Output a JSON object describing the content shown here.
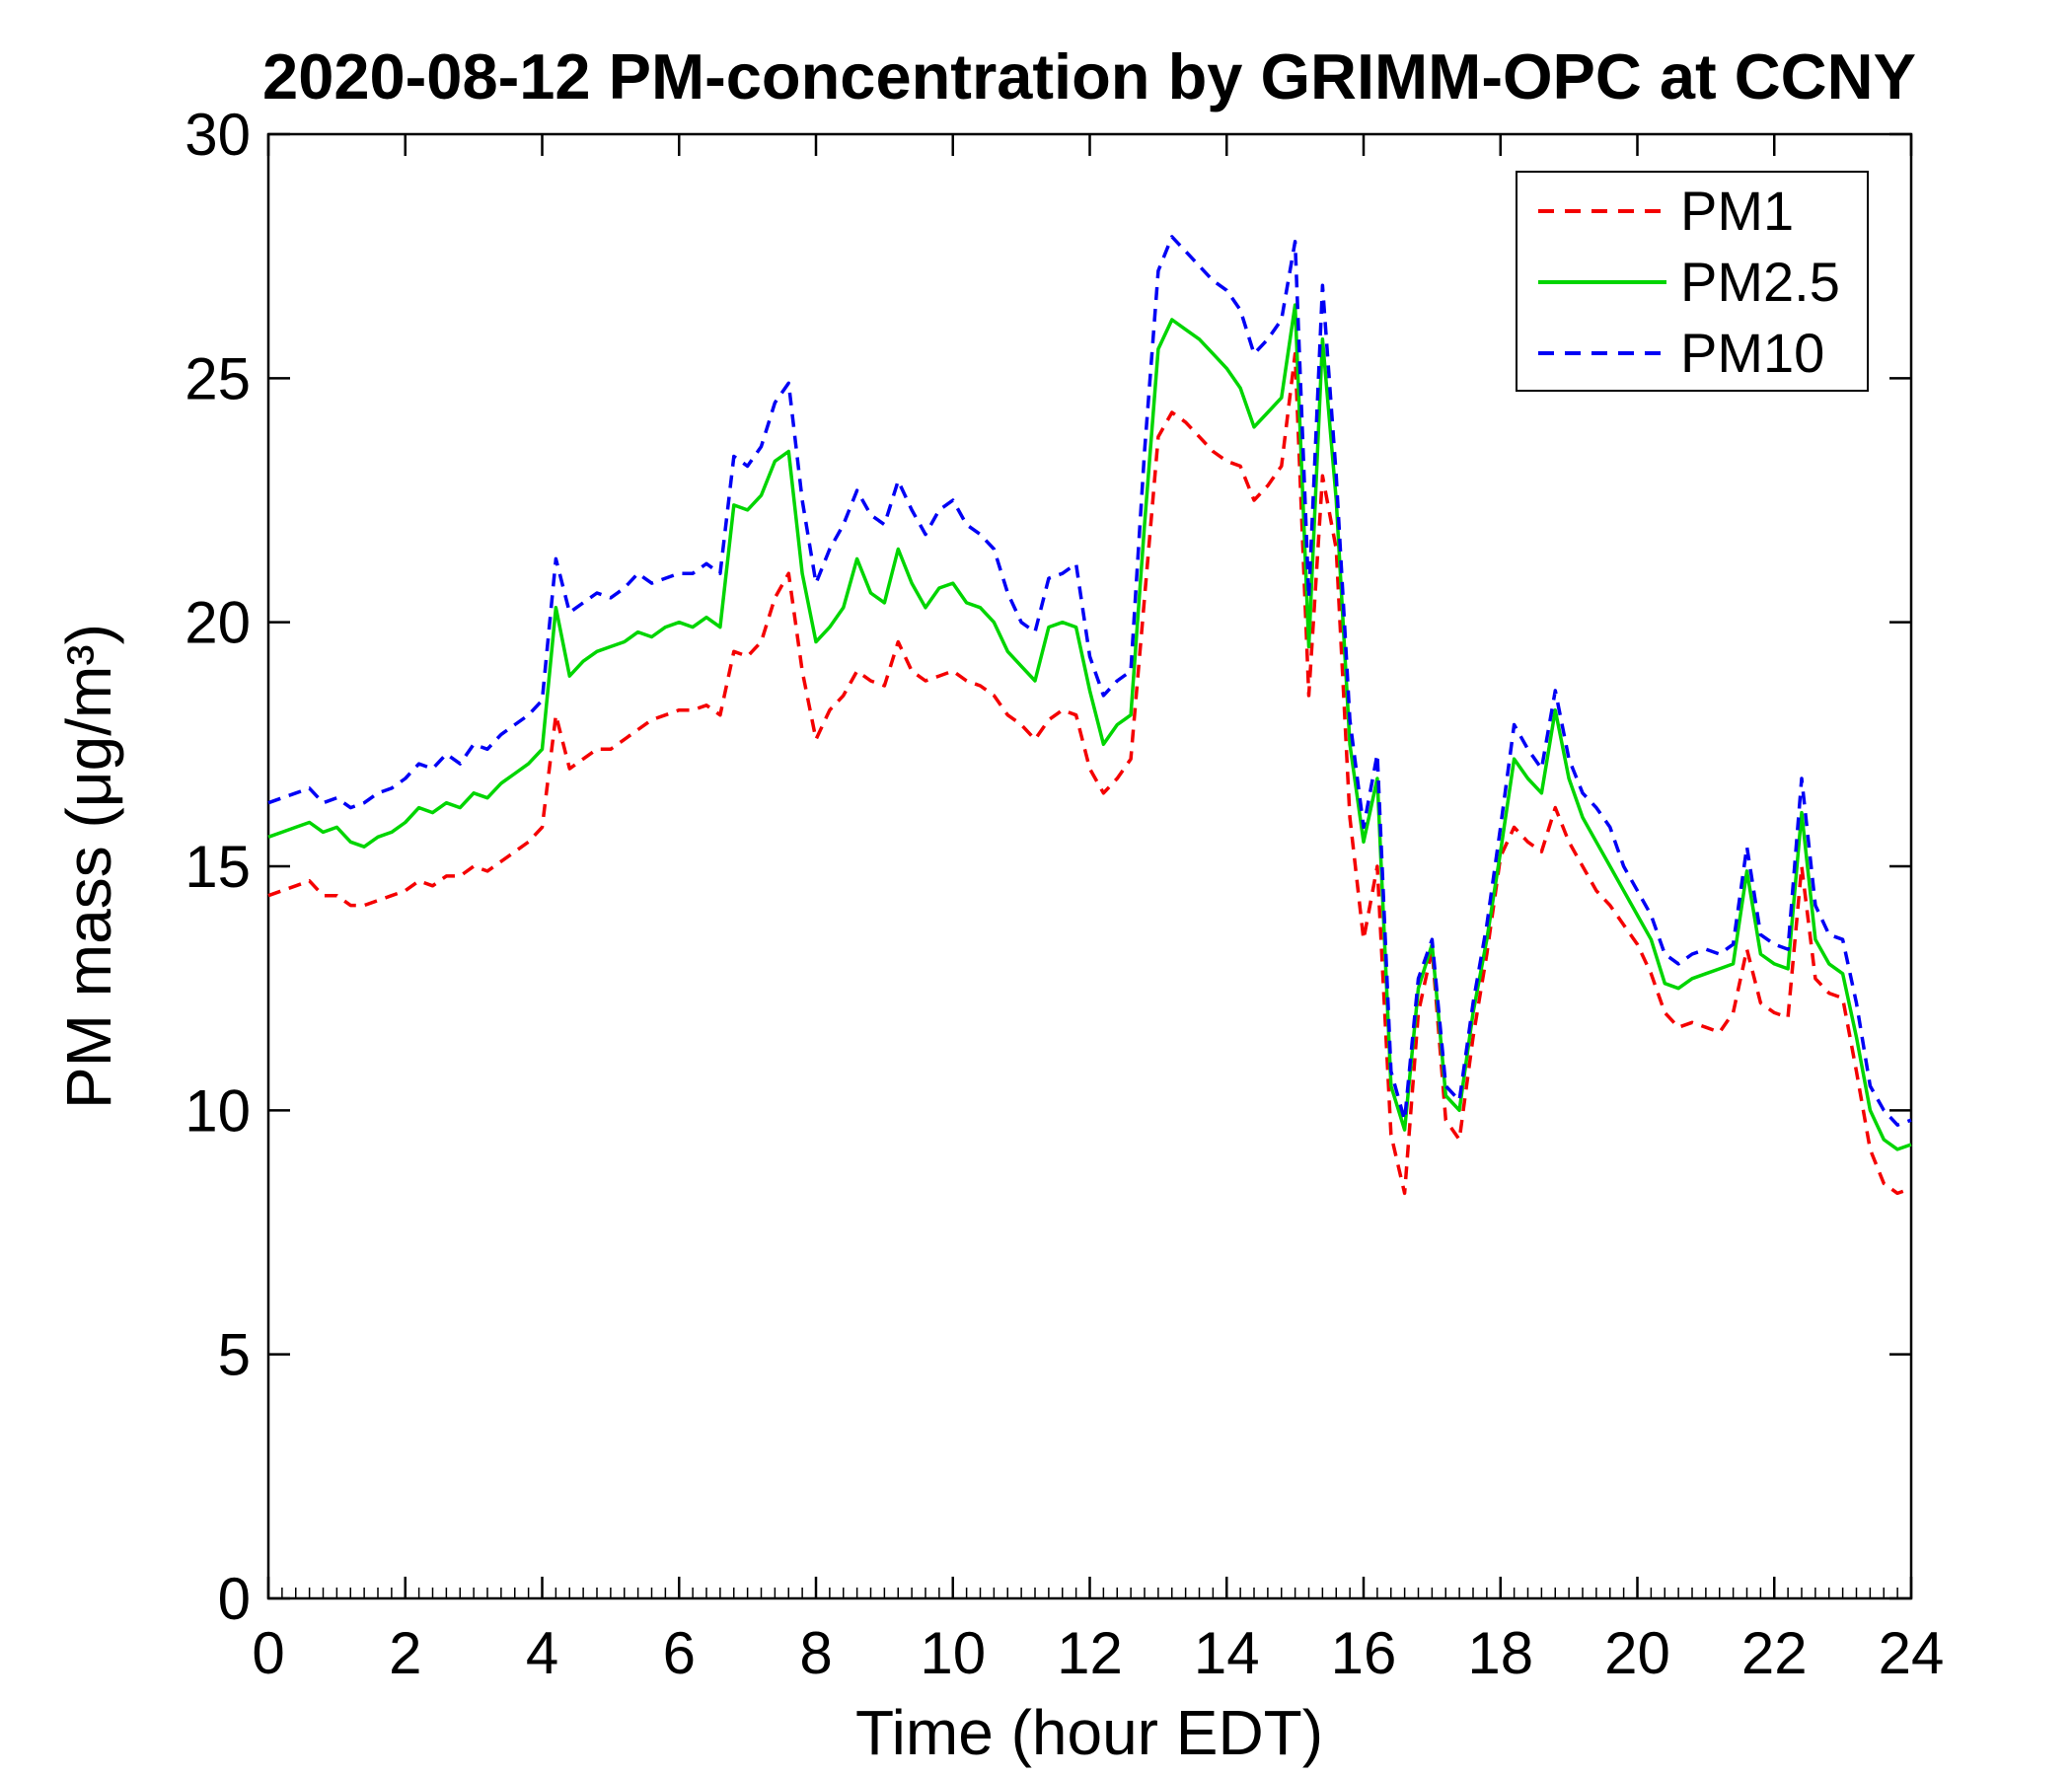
{
  "chart_data": {
    "type": "line",
    "title": "2020-08-12 PM-concentration by GRIMM-OPC at CCNY",
    "xlabel": "Time (hour EDT)",
    "ylabel": "PM mass (μg/m³)",
    "xlim": [
      0,
      24
    ],
    "ylim": [
      0,
      30
    ],
    "xticks": [
      0,
      2,
      4,
      6,
      8,
      10,
      12,
      14,
      16,
      18,
      20,
      22,
      24
    ],
    "yticks": [
      0,
      5,
      10,
      15,
      20,
      25,
      30
    ],
    "x_minor_step": 0.2,
    "grid": false,
    "legend_position": "top-right",
    "x_start": 0,
    "x_step": 0.2,
    "series": [
      {
        "name": "PM1",
        "color": "#f40000",
        "style": "dashed",
        "values": [
          14.4,
          14.5,
          14.6,
          14.7,
          14.4,
          14.4,
          14.2,
          14.2,
          14.3,
          14.4,
          14.5,
          14.7,
          14.6,
          14.8,
          14.8,
          15.0,
          14.9,
          15.1,
          15.3,
          15.5,
          15.8,
          18.1,
          17.0,
          17.2,
          17.4,
          17.4,
          17.6,
          17.8,
          18.0,
          18.1,
          18.2,
          18.2,
          18.3,
          18.1,
          19.4,
          19.3,
          19.6,
          20.5,
          21.0,
          19.0,
          17.6,
          18.2,
          18.5,
          19.0,
          18.8,
          18.7,
          19.6,
          19.0,
          18.8,
          18.9,
          19.0,
          18.8,
          18.7,
          18.5,
          18.1,
          17.9,
          17.6,
          18.0,
          18.2,
          18.1,
          17.0,
          16.5,
          16.8,
          17.2,
          20.5,
          23.8,
          24.3,
          24.1,
          23.8,
          23.5,
          23.3,
          23.2,
          22.5,
          22.8,
          23.2,
          25.5,
          18.5,
          23.0,
          21.5,
          16.0,
          13.5,
          15.0,
          9.5,
          8.3,
          12.0,
          13.3,
          9.8,
          9.4,
          11.5,
          13.2,
          15.2,
          15.8,
          15.5,
          15.3,
          16.2,
          15.5,
          15.0,
          14.5,
          14.2,
          13.8,
          13.4,
          12.8,
          12.0,
          11.7,
          11.8,
          11.7,
          11.6,
          12.0,
          13.3,
          12.2,
          12.0,
          11.9,
          15.0,
          12.7,
          12.4,
          12.3,
          10.8,
          9.2,
          8.5,
          8.3,
          8.4
        ]
      },
      {
        "name": "PM2.5",
        "color": "#00d500",
        "style": "solid",
        "values": [
          15.6,
          15.7,
          15.8,
          15.9,
          15.7,
          15.8,
          15.5,
          15.4,
          15.6,
          15.7,
          15.9,
          16.2,
          16.1,
          16.3,
          16.2,
          16.5,
          16.4,
          16.7,
          16.9,
          17.1,
          17.4,
          20.3,
          18.9,
          19.2,
          19.4,
          19.5,
          19.6,
          19.8,
          19.7,
          19.9,
          20.0,
          19.9,
          20.1,
          19.9,
          22.4,
          22.3,
          22.6,
          23.3,
          23.5,
          21.0,
          19.6,
          19.9,
          20.3,
          21.3,
          20.6,
          20.4,
          21.5,
          20.8,
          20.3,
          20.7,
          20.8,
          20.4,
          20.3,
          20.0,
          19.4,
          19.1,
          18.8,
          19.9,
          20.0,
          19.9,
          18.6,
          17.5,
          17.9,
          18.1,
          22.0,
          25.6,
          26.2,
          26.0,
          25.8,
          25.5,
          25.2,
          24.8,
          24.0,
          24.3,
          24.6,
          26.5,
          19.5,
          25.8,
          22.5,
          17.5,
          15.5,
          16.8,
          10.5,
          9.6,
          12.5,
          13.4,
          10.3,
          10.0,
          12.0,
          13.5,
          15.3,
          17.2,
          16.8,
          16.5,
          18.2,
          16.8,
          16.0,
          15.5,
          15.0,
          14.5,
          14.0,
          13.5,
          12.6,
          12.5,
          12.7,
          12.8,
          12.9,
          13.0,
          14.9,
          13.2,
          13.0,
          12.9,
          16.1,
          13.5,
          13.0,
          12.8,
          11.5,
          10.0,
          9.4,
          9.2,
          9.3
        ]
      },
      {
        "name": "PM10",
        "color": "#0000f5",
        "style": "dashed",
        "values": [
          16.3,
          16.4,
          16.5,
          16.6,
          16.3,
          16.4,
          16.2,
          16.3,
          16.5,
          16.6,
          16.8,
          17.1,
          17.0,
          17.3,
          17.1,
          17.5,
          17.4,
          17.7,
          17.9,
          18.1,
          18.4,
          21.3,
          20.2,
          20.4,
          20.6,
          20.5,
          20.7,
          21.0,
          20.8,
          20.9,
          21.0,
          21.0,
          21.2,
          21.0,
          23.4,
          23.2,
          23.6,
          24.5,
          24.9,
          22.5,
          20.8,
          21.5,
          22.0,
          22.7,
          22.2,
          22.0,
          22.9,
          22.3,
          21.8,
          22.3,
          22.5,
          22.0,
          21.8,
          21.5,
          20.6,
          20.0,
          19.8,
          20.9,
          21.0,
          21.2,
          19.3,
          18.5,
          18.8,
          19.0,
          23.5,
          27.2,
          27.9,
          27.6,
          27.3,
          27.0,
          26.8,
          26.4,
          25.5,
          25.8,
          26.2,
          27.8,
          20.5,
          26.9,
          23.0,
          18.0,
          15.8,
          17.3,
          10.8,
          9.8,
          12.7,
          13.5,
          10.5,
          10.2,
          12.2,
          13.8,
          15.8,
          17.9,
          17.4,
          17.0,
          18.6,
          17.2,
          16.5,
          16.2,
          15.8,
          15.0,
          14.5,
          14.0,
          13.2,
          13.0,
          13.2,
          13.3,
          13.2,
          13.4,
          15.4,
          13.6,
          13.4,
          13.3,
          16.8,
          14.2,
          13.6,
          13.5,
          12.2,
          10.5,
          10.0,
          9.7,
          9.8
        ]
      }
    ]
  }
}
